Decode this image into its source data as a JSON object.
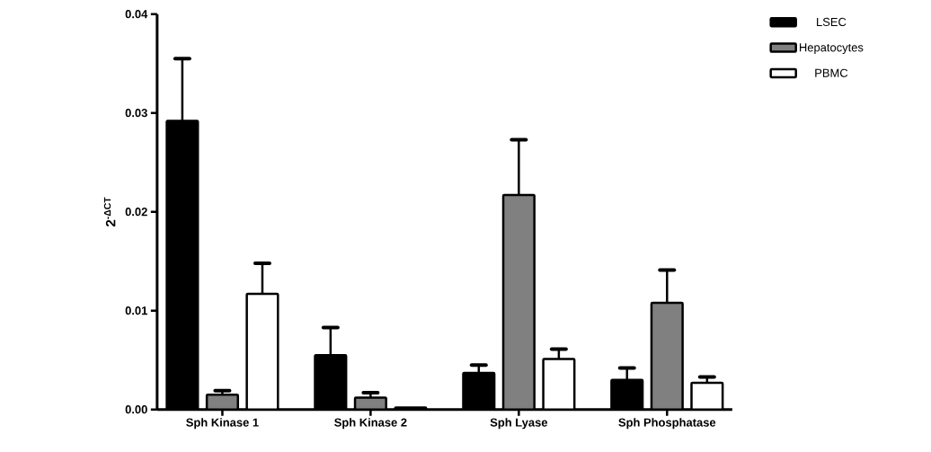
{
  "chart_data": {
    "type": "bar",
    "ylabel": "2$^{-ΔCT}$",
    "categories": [
      "Sph Kinase 1",
      "Sph Kinase 2",
      "Sph Lyase",
      "Sph Phosphatase"
    ],
    "series": [
      {
        "name": "LSEC",
        "color": "#000000",
        "values": [
          0.0292,
          0.0055,
          0.0037,
          0.003
        ],
        "errors": [
          [
            0.0292,
            0.0355
          ],
          [
            0.0055,
            0.0083
          ],
          [
            0.0037,
            0.0045
          ],
          [
            0.003,
            0.0042
          ]
        ]
      },
      {
        "name": "Hepatocytes",
        "color": "#808080",
        "values": [
          0.0015,
          0.0012,
          0.0217,
          0.0108
        ],
        "errors": [
          [
            0.0015,
            0.0019
          ],
          [
            0.0012,
            0.0017
          ],
          [
            0.0217,
            0.0273
          ],
          [
            0.0108,
            0.0141
          ]
        ]
      },
      {
        "name": "PBMC",
        "color": "#ffffff",
        "values": [
          0.0117,
          0.0002,
          0.0051,
          0.0027
        ],
        "errors": [
          [
            0.0117,
            0.0148
          ],
          null,
          [
            0.0051,
            0.0061
          ],
          [
            0.0027,
            0.0033
          ]
        ]
      }
    ],
    "ylim": [
      0,
      0.04
    ],
    "yticks": [
      {
        "value": 0,
        "label": "0.00"
      },
      {
        "value": 0.01,
        "label": "0.01"
      },
      {
        "value": 0.02,
        "label": "0.02"
      },
      {
        "value": 0.03,
        "label": "0.03"
      },
      {
        "value": 0.04,
        "label": "0.04"
      }
    ],
    "grid": false,
    "legend": "right"
  }
}
